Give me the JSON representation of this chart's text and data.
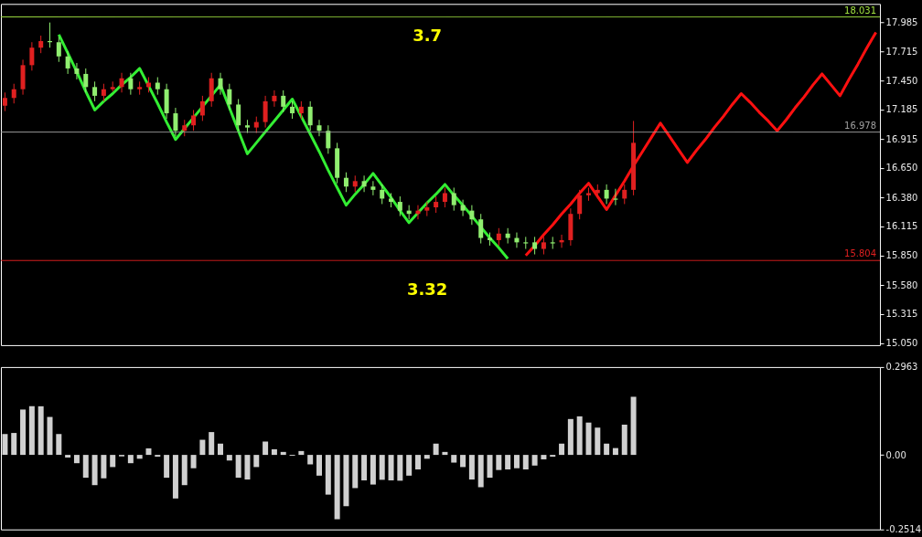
{
  "chart_data": [
    {
      "type": "candlestick",
      "categories": [
        null,
        null,
        null,
        null,
        null,
        null,
        null,
        null,
        null,
        null,
        null,
        null,
        null,
        null,
        null,
        null,
        null,
        null,
        null,
        null,
        null,
        null,
        null,
        null,
        null,
        null,
        null,
        null,
        null,
        null,
        null,
        null,
        null,
        null,
        null,
        null,
        null,
        null,
        null,
        null,
        null,
        null,
        null,
        null,
        null,
        null,
        null,
        null,
        null,
        null,
        null,
        null,
        null,
        null,
        null,
        null,
        null,
        null,
        null,
        null,
        null,
        null,
        null,
        null,
        null,
        null,
        null,
        null,
        null,
        null,
        null,
        null,
        null,
        null,
        null,
        null,
        null,
        null,
        null,
        null,
        null,
        null,
        null,
        null,
        null,
        null,
        null,
        null,
        null,
        null,
        null,
        null,
        null,
        null,
        null,
        null,
        null,
        null
      ],
      "ohlc": [
        [
          17.22,
          17.34,
          17.17,
          17.29
        ],
        [
          17.29,
          17.42,
          17.24,
          17.37
        ],
        [
          17.37,
          17.64,
          17.32,
          17.59
        ],
        [
          17.59,
          17.8,
          17.54,
          17.75
        ],
        [
          17.75,
          17.86,
          17.7,
          17.81
        ],
        [
          17.81,
          17.98,
          17.75,
          17.8
        ],
        [
          17.8,
          17.85,
          17.62,
          17.67
        ],
        [
          17.67,
          17.72,
          17.51,
          17.56
        ],
        [
          17.56,
          17.61,
          17.46,
          17.51
        ],
        [
          17.51,
          17.56,
          17.34,
          17.39
        ],
        [
          17.39,
          17.44,
          17.26,
          17.31
        ],
        [
          17.31,
          17.42,
          17.26,
          17.37
        ],
        [
          17.37,
          17.44,
          17.35,
          17.39
        ],
        [
          17.39,
          17.52,
          17.34,
          17.47
        ],
        [
          17.47,
          17.52,
          17.32,
          17.37
        ],
        [
          17.37,
          17.44,
          17.32,
          17.39
        ],
        [
          17.39,
          17.48,
          17.34,
          17.43
        ],
        [
          17.43,
          17.48,
          17.32,
          17.37
        ],
        [
          17.37,
          17.42,
          17.1,
          17.15
        ],
        [
          17.15,
          17.2,
          16.94,
          16.99
        ],
        [
          16.99,
          17.09,
          16.94,
          17.04
        ],
        [
          17.04,
          17.18,
          16.99,
          17.13
        ],
        [
          17.13,
          17.31,
          17.08,
          17.26
        ],
        [
          17.26,
          17.52,
          17.21,
          17.47
        ],
        [
          17.47,
          17.52,
          17.32,
          17.37
        ],
        [
          17.37,
          17.42,
          17.18,
          17.23
        ],
        [
          17.23,
          17.28,
          16.99,
          17.04
        ],
        [
          17.04,
          17.09,
          16.97,
          17.02
        ],
        [
          17.02,
          17.12,
          16.97,
          17.07
        ],
        [
          17.07,
          17.31,
          17.02,
          17.26
        ],
        [
          17.26,
          17.36,
          17.21,
          17.31
        ],
        [
          17.31,
          17.36,
          17.16,
          17.21
        ],
        [
          17.21,
          17.26,
          17.1,
          17.15
        ],
        [
          17.15,
          17.26,
          17.1,
          17.21
        ],
        [
          17.21,
          17.26,
          16.99,
          17.04
        ],
        [
          17.04,
          17.09,
          16.94,
          16.99
        ],
        [
          16.99,
          17.04,
          16.78,
          16.83
        ],
        [
          16.83,
          16.88,
          16.51,
          16.56
        ],
        [
          16.56,
          16.61,
          16.43,
          16.48
        ],
        [
          16.48,
          16.58,
          16.43,
          16.53
        ],
        [
          16.53,
          16.58,
          16.43,
          16.48
        ],
        [
          16.48,
          16.53,
          16.4,
          16.45
        ],
        [
          16.45,
          16.5,
          16.32,
          16.37
        ],
        [
          16.37,
          16.42,
          16.29,
          16.34
        ],
        [
          16.34,
          16.39,
          16.21,
          16.26
        ],
        [
          16.26,
          16.31,
          16.18,
          16.23
        ],
        [
          16.23,
          16.31,
          16.18,
          16.26
        ],
        [
          16.26,
          16.34,
          16.21,
          16.29
        ],
        [
          16.29,
          16.39,
          16.24,
          16.34
        ],
        [
          16.34,
          16.47,
          16.29,
          16.42
        ],
        [
          16.42,
          16.47,
          16.26,
          16.31
        ],
        [
          16.31,
          16.36,
          16.21,
          16.26
        ],
        [
          16.26,
          16.31,
          16.13,
          16.18
        ],
        [
          16.18,
          16.23,
          15.96,
          16.01
        ],
        [
          16.01,
          16.06,
          15.94,
          15.99
        ],
        [
          15.99,
          16.1,
          15.94,
          16.05
        ],
        [
          16.05,
          16.1,
          15.96,
          16.01
        ],
        [
          16.01,
          16.06,
          15.92,
          15.97
        ],
        [
          15.97,
          16.02,
          15.91,
          15.96
        ],
        [
          15.97,
          16.02,
          15.86,
          15.91
        ],
        [
          15.91,
          16.02,
          15.86,
          15.97
        ],
        [
          15.97,
          16.02,
          15.91,
          15.96
        ],
        [
          15.97,
          16.04,
          15.92,
          15.99
        ],
        [
          15.99,
          16.28,
          15.94,
          16.23
        ],
        [
          16.23,
          16.45,
          16.18,
          16.4
        ],
        [
          16.4,
          16.47,
          16.35,
          16.42
        ],
        [
          16.42,
          16.5,
          16.37,
          16.45
        ],
        [
          16.45,
          16.5,
          16.32,
          16.37
        ],
        [
          16.37,
          16.46,
          16.31,
          16.36
        ],
        [
          16.37,
          16.5,
          16.32,
          16.45
        ],
        [
          16.45,
          17.08,
          16.4,
          16.88
        ],
        null,
        null,
        null,
        null,
        null,
        null,
        null,
        null,
        null,
        null,
        null,
        null,
        null,
        null,
        null,
        null,
        null,
        null,
        null,
        null,
        null,
        null,
        null,
        null,
        null,
        null,
        null
      ],
      "colors": [
        "#e02020",
        "#e02020",
        "#e02020",
        "#e02020",
        "#e02020",
        "#90ee70",
        "#90ee70",
        "#90ee70",
        "#90ee70",
        "#90ee70",
        "#90ee70",
        "#e02020",
        "#e02020",
        "#e02020",
        "#90ee70",
        "#e02020",
        "#e02020",
        "#90ee70",
        "#90ee70",
        "#90ee70",
        "#e02020",
        "#e02020",
        "#e02020",
        "#e02020",
        "#90ee70",
        "#90ee70",
        "#90ee70",
        "#90ee70",
        "#e02020",
        "#e02020",
        "#e02020",
        "#90ee70",
        "#90ee70",
        "#e02020",
        "#90ee70",
        "#90ee70",
        "#90ee70",
        "#90ee70",
        "#90ee70",
        "#e02020",
        "#90ee70",
        "#90ee70",
        "#90ee70",
        "#90ee70",
        "#90ee70",
        "#90ee70",
        "#e02020",
        "#e02020",
        "#e02020",
        "#e02020",
        "#90ee70",
        "#90ee70",
        "#90ee70",
        "#90ee70",
        "#90ee70",
        "#e02020",
        "#90ee70",
        "#90ee70",
        "#90ee70",
        "#90ee70",
        "#e02020",
        "#90ee70",
        "#e02020",
        "#e02020",
        "#e02020",
        "#e02020",
        "#e02020",
        "#90ee70",
        "#90ee70",
        "#e02020",
        "#e02020",
        null,
        null,
        null,
        null,
        null,
        null,
        null,
        null,
        null,
        null,
        null,
        null,
        null,
        null,
        null,
        null,
        null,
        null,
        null,
        null,
        null,
        null,
        null,
        null,
        null,
        null,
        null
      ],
      "series": [
        {
          "type": "line",
          "color": "#33ee33",
          "values": [
            null,
            null,
            null,
            null,
            null,
            null,
            17.87,
            17.7,
            17.53,
            17.35,
            17.18,
            17.26,
            17.33,
            17.41,
            17.48,
            17.56,
            17.4,
            17.24,
            17.07,
            16.91,
            17.01,
            17.11,
            17.21,
            17.31,
            17.41,
            17.2,
            16.99,
            16.78,
            16.88,
            16.98,
            17.08,
            17.18,
            17.28,
            17.12,
            16.96,
            16.8,
            16.63,
            16.47,
            16.31,
            16.41,
            16.5,
            16.6,
            16.49,
            16.38,
            16.26,
            16.15,
            16.24,
            16.33,
            16.41,
            16.5,
            16.4,
            16.31,
            16.21,
            16.11,
            16.01,
            15.92,
            15.82,
            null,
            null,
            null,
            null,
            null,
            null,
            null,
            null,
            null,
            null,
            null,
            null,
            null,
            null,
            null,
            null,
            null,
            null,
            null,
            null,
            null,
            null,
            null,
            null,
            null,
            null,
            null,
            null,
            null,
            null,
            null,
            null,
            null,
            null,
            null,
            null,
            null,
            null,
            null,
            null,
            null
          ]
        },
        {
          "type": "line",
          "color": "#ff1010",
          "values": [
            null,
            null,
            null,
            null,
            null,
            null,
            null,
            null,
            null,
            null,
            null,
            null,
            null,
            null,
            null,
            null,
            null,
            null,
            null,
            null,
            null,
            null,
            null,
            null,
            null,
            null,
            null,
            null,
            null,
            null,
            null,
            null,
            null,
            null,
            null,
            null,
            null,
            null,
            null,
            null,
            null,
            null,
            null,
            null,
            null,
            null,
            null,
            null,
            null,
            null,
            null,
            null,
            null,
            null,
            null,
            null,
            null,
            null,
            15.85,
            15.94,
            16.04,
            16.13,
            16.23,
            16.32,
            16.42,
            16.51,
            16.39,
            16.27,
            16.4,
            16.53,
            16.67,
            16.8,
            16.93,
            17.06,
            16.94,
            16.82,
            16.7,
            16.81,
            16.91,
            17.02,
            17.12,
            17.23,
            17.33,
            17.25,
            17.16,
            17.08,
            16.99,
            17.09,
            17.2,
            17.3,
            17.41,
            17.51,
            17.41,
            17.31,
            17.46,
            17.6,
            17.75,
            17.89
          ]
        }
      ],
      "ylim": [
        15.03,
        18.15
      ],
      "yticks": [
        {
          "value": 15.05,
          "label": "15.050"
        },
        {
          "value": 15.315,
          "label": "15.315"
        },
        {
          "value": 15.58,
          "label": "15.580"
        },
        {
          "value": 15.85,
          "label": "15.850"
        },
        {
          "value": 16.115,
          "label": "16.115"
        },
        {
          "value": 16.38,
          "label": "16.380"
        },
        {
          "value": 16.65,
          "label": "16.650"
        },
        {
          "value": 16.915,
          "label": "16.915"
        },
        {
          "value": 17.185,
          "label": "17.185"
        },
        {
          "value": 17.45,
          "label": "17.450"
        },
        {
          "value": 17.715,
          "label": "17.715"
        },
        {
          "value": 17.985,
          "label": "17.985"
        }
      ],
      "tick_labels": "y",
      "ref_lines": [
        {
          "axis": "y",
          "value": 18.031,
          "label": "18.031",
          "color": "#a0e040"
        },
        {
          "axis": "y",
          "value": 16.978,
          "label": "16.978",
          "color": "#a0a0a0"
        },
        {
          "axis": "y",
          "value": 15.804,
          "label": "15.804",
          "color": "#e02020"
        }
      ],
      "annotations": [
        "3.7",
        "3.32"
      ]
    },
    {
      "type": "bar",
      "categories": [
        null,
        null,
        null,
        null,
        null,
        null,
        null,
        null,
        null,
        null,
        null,
        null,
        null,
        null,
        null,
        null,
        null,
        null,
        null,
        null,
        null,
        null,
        null,
        null,
        null,
        null,
        null,
        null,
        null,
        null,
        null,
        null,
        null,
        null,
        null,
        null,
        null,
        null,
        null,
        null,
        null,
        null,
        null,
        null,
        null,
        null,
        null,
        null,
        null,
        null,
        null,
        null,
        null,
        null,
        null,
        null,
        null,
        null,
        null,
        null,
        null,
        null,
        null,
        null,
        null,
        null,
        null,
        null,
        null,
        null,
        null,
        null,
        null,
        null,
        null,
        null,
        null,
        null,
        null,
        null,
        null,
        null,
        null,
        null,
        null,
        null,
        null,
        null,
        null,
        null,
        null,
        null,
        null,
        null,
        null,
        null,
        null,
        null
      ],
      "series": [
        {
          "color": "#d0d0d0",
          "values": [
            0.07,
            0.074,
            0.153,
            0.164,
            0.164,
            0.128,
            0.07,
            -0.009,
            -0.028,
            -0.077,
            -0.102,
            -0.079,
            -0.041,
            -0.005,
            -0.028,
            -0.013,
            0.022,
            -0.006,
            -0.077,
            -0.147,
            -0.102,
            -0.045,
            0.051,
            0.077,
            0.038,
            -0.019,
            -0.077,
            -0.083,
            -0.041,
            0.045,
            0.019,
            0.01,
            -0.003,
            0.013,
            -0.032,
            -0.07,
            -0.134,
            -0.217,
            -0.173,
            -0.112,
            -0.086,
            -0.1,
            -0.084,
            -0.086,
            -0.087,
            -0.07,
            -0.049,
            -0.013,
            0.038,
            0.01,
            -0.026,
            -0.041,
            -0.083,
            -0.109,
            -0.077,
            -0.051,
            -0.049,
            -0.045,
            -0.049,
            -0.036,
            -0.015,
            -0.006,
            0.038,
            0.121,
            0.13,
            0.109,
            0.092,
            0.038,
            0.023,
            0.102,
            0.196,
            null,
            null,
            null,
            null,
            null,
            null,
            null,
            null,
            null,
            null,
            null,
            null,
            null,
            null,
            null,
            null,
            null,
            null,
            null,
            null,
            null,
            null,
            null,
            null,
            null,
            null,
            null
          ]
        }
      ],
      "ylim": [
        -0.2514,
        0.2963
      ],
      "yticks": [
        0.2963,
        {
          "value": 0,
          "label": "0.00"
        },
        -0.2514
      ],
      "tick_labels": "y"
    }
  ]
}
